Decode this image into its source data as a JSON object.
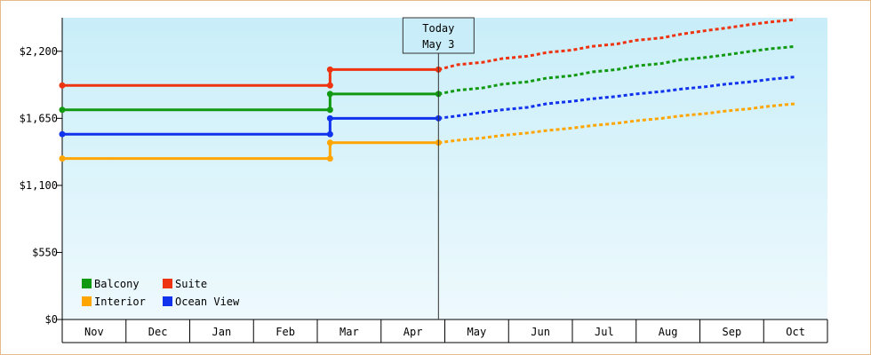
{
  "chart_data": {
    "type": "line",
    "title": "",
    "xlabel": "",
    "ylabel": "",
    "ylim": [
      0,
      2475
    ],
    "yticks": [
      {
        "value": 0,
        "label": "$0"
      },
      {
        "value": 550,
        "label": "$550"
      },
      {
        "value": 1100,
        "label": "$1,100"
      },
      {
        "value": 1650,
        "label": "$1,650"
      },
      {
        "value": 2200,
        "label": "$2,200"
      }
    ],
    "months": [
      "Nov",
      "Dec",
      "Jan",
      "Feb",
      "Mar",
      "Apr",
      "May",
      "Jun",
      "Jul",
      "Aug",
      "Sep",
      "Oct"
    ],
    "today": {
      "line1": "Today",
      "line2": "May 3",
      "x": 5.9
    },
    "legend_placement": "bottom-left",
    "series": [
      {
        "name": "Suite",
        "color": "#ee3311",
        "history": [
          [
            0,
            1920
          ],
          [
            4.2,
            1920
          ],
          [
            4.2,
            2050
          ],
          [
            5.9,
            2050
          ]
        ],
        "forecast": [
          [
            5.9,
            2050
          ],
          [
            6.2,
            2090
          ],
          [
            6.6,
            2110
          ],
          [
            6.9,
            2140
          ],
          [
            7.3,
            2160
          ],
          [
            7.6,
            2190
          ],
          [
            8.0,
            2210
          ],
          [
            8.3,
            2240
          ],
          [
            8.7,
            2260
          ],
          [
            9.0,
            2290
          ],
          [
            9.4,
            2310
          ],
          [
            9.7,
            2340
          ],
          [
            10.1,
            2370
          ],
          [
            10.4,
            2390
          ],
          [
            10.8,
            2420
          ],
          [
            11.1,
            2440
          ],
          [
            11.5,
            2460
          ]
        ]
      },
      {
        "name": "Balcony",
        "color": "#119911",
        "history": [
          [
            0,
            1720
          ],
          [
            4.2,
            1720
          ],
          [
            4.2,
            1850
          ],
          [
            5.9,
            1850
          ]
        ],
        "forecast": [
          [
            5.9,
            1850
          ],
          [
            6.2,
            1880
          ],
          [
            6.6,
            1900
          ],
          [
            6.9,
            1930
          ],
          [
            7.3,
            1950
          ],
          [
            7.6,
            1980
          ],
          [
            8.0,
            2000
          ],
          [
            8.3,
            2030
          ],
          [
            8.7,
            2050
          ],
          [
            9.0,
            2080
          ],
          [
            9.4,
            2100
          ],
          [
            9.7,
            2130
          ],
          [
            10.1,
            2150
          ],
          [
            10.4,
            2170
          ],
          [
            10.8,
            2200
          ],
          [
            11.1,
            2220
          ],
          [
            11.5,
            2240
          ]
        ]
      },
      {
        "name": "Ocean View",
        "color": "#1133ee",
        "history": [
          [
            0,
            1520
          ],
          [
            4.2,
            1520
          ],
          [
            4.2,
            1650
          ],
          [
            5.9,
            1650
          ]
        ],
        "forecast": [
          [
            5.9,
            1650
          ],
          [
            6.2,
            1670
          ],
          [
            6.6,
            1700
          ],
          [
            6.9,
            1720
          ],
          [
            7.3,
            1740
          ],
          [
            7.6,
            1770
          ],
          [
            8.0,
            1790
          ],
          [
            8.3,
            1810
          ],
          [
            8.7,
            1830
          ],
          [
            9.0,
            1850
          ],
          [
            9.4,
            1870
          ],
          [
            9.7,
            1890
          ],
          [
            10.1,
            1910
          ],
          [
            10.4,
            1930
          ],
          [
            10.8,
            1950
          ],
          [
            11.1,
            1970
          ],
          [
            11.5,
            1990
          ]
        ]
      },
      {
        "name": "Interior",
        "color": "#ffa500",
        "history": [
          [
            0,
            1320
          ],
          [
            4.2,
            1320
          ],
          [
            4.2,
            1450
          ],
          [
            5.9,
            1450
          ]
        ],
        "forecast": [
          [
            5.9,
            1450
          ],
          [
            6.2,
            1470
          ],
          [
            6.6,
            1490
          ],
          [
            6.9,
            1510
          ],
          [
            7.3,
            1530
          ],
          [
            7.6,
            1550
          ],
          [
            8.0,
            1570
          ],
          [
            8.3,
            1590
          ],
          [
            8.7,
            1610
          ],
          [
            9.0,
            1630
          ],
          [
            9.4,
            1650
          ],
          [
            9.7,
            1670
          ],
          [
            10.1,
            1690
          ],
          [
            10.4,
            1710
          ],
          [
            10.8,
            1730
          ],
          [
            11.1,
            1750
          ],
          [
            11.5,
            1770
          ]
        ]
      }
    ],
    "legend": [
      {
        "name": "Balcony",
        "color": "#119911"
      },
      {
        "name": "Suite",
        "color": "#ee3311"
      },
      {
        "name": "Interior",
        "color": "#ffa500"
      },
      {
        "name": "Ocean View",
        "color": "#1133ee"
      }
    ]
  }
}
